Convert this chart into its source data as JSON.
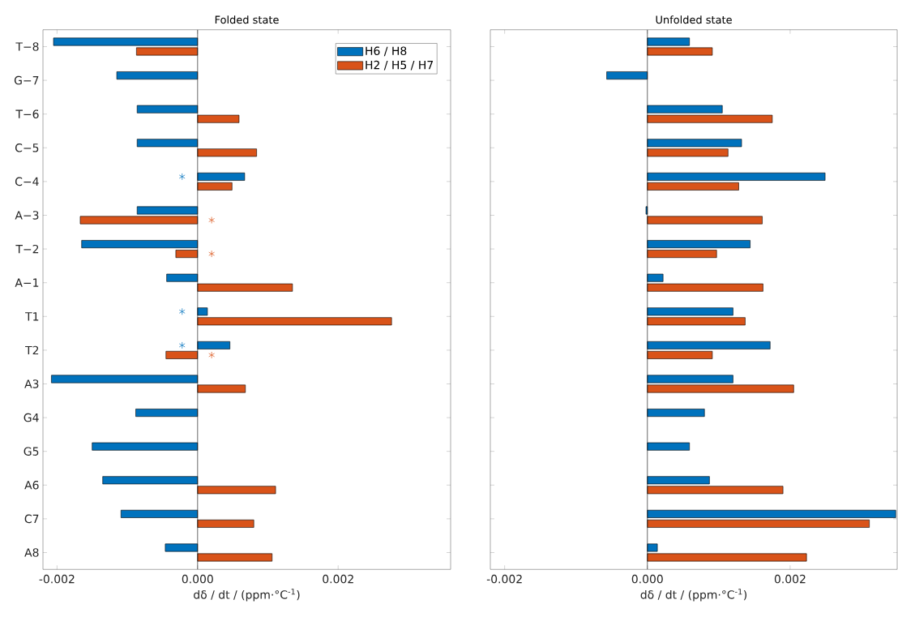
{
  "chart_data": [
    {
      "type": "bar",
      "orientation": "horizontal",
      "title": "Folded state",
      "xlabel": "dδ / dt / (ppm·°C$^{-1}$)",
      "categories": [
        "T−8",
        "G−7",
        "T−6",
        "C−5",
        "C−4",
        "A−3",
        "T−2",
        "A−1",
        "T1",
        "T2",
        "A3",
        "G4",
        "G5",
        "A6",
        "C7",
        "A8"
      ],
      "series": [
        {
          "name": "H6 / H8",
          "color": "#0072bd",
          "values": [
            -0.00205,
            -0.00115,
            -0.00086,
            -0.00086,
            0.00067,
            -0.00086,
            -0.00165,
            -0.00044,
            0.00014,
            0.00046,
            -0.00208,
            -0.00088,
            -0.0015,
            -0.00135,
            -0.00109,
            -0.00046
          ]
        },
        {
          "name": "H2 / H5 / H7",
          "color": "#d95319",
          "values": [
            -0.00087,
            null,
            0.00059,
            0.00084,
            0.00049,
            -0.00167,
            -0.00031,
            0.00135,
            0.00276,
            -0.00045,
            0.00068,
            null,
            null,
            0.00111,
            0.0008,
            0.00106
          ]
        },
        {
          "type": "scatter",
          "marker": "cross",
          "color": "#0072bd",
          "values": [
            null,
            null,
            null,
            null,
            -0.00022,
            null,
            null,
            null,
            -0.00022,
            -0.00022,
            null,
            null,
            null,
            null,
            null,
            null
          ]
        },
        {
          "type": "scatter",
          "marker": "cross",
          "color": "#d95319",
          "values": [
            null,
            null,
            null,
            null,
            null,
            0.0002,
            0.0002,
            null,
            null,
            0.0002,
            null,
            null,
            null,
            null,
            null,
            null
          ]
        }
      ],
      "xlim": [
        -0.0022,
        0.0036
      ],
      "xticks": [
        {
          "value": -0.002,
          "label": "-0.002"
        },
        {
          "value": 0,
          "label": "0.000"
        },
        {
          "value": 0.002,
          "label": "0.002"
        }
      ],
      "legend": "top right"
    },
    {
      "type": "bar",
      "orientation": "horizontal",
      "title": "Unfolded state",
      "xlabel": "dδ / dt / (ppm·°C$^{-1}$)",
      "categories": [
        null,
        null,
        null,
        null,
        null,
        null,
        null,
        null,
        null,
        null,
        null,
        null,
        null,
        null,
        null,
        null
      ],
      "series": [
        {
          "color": "#0072bd",
          "values": [
            0.00059,
            -0.00057,
            0.00105,
            0.00132,
            0.00249,
            -2e-05,
            0.00144,
            0.00022,
            0.0012,
            0.00172,
            0.0012,
            0.0008,
            0.00059,
            0.00087,
            0.00348,
            0.00014
          ]
        },
        {
          "color": "#d95319",
          "values": [
            0.00091,
            null,
            0.00175,
            0.00113,
            0.00128,
            0.00161,
            0.00097,
            0.00162,
            0.00137,
            0.00091,
            0.00205,
            null,
            null,
            0.0019,
            0.00311,
            0.00223
          ]
        }
      ],
      "xlim": [
        -0.0022,
        0.0035
      ],
      "xticks": [
        {
          "value": -0.002,
          "label": "-0.002"
        },
        {
          "value": 0,
          "label": "0.000"
        },
        {
          "value": 0.002,
          "label": "0.002"
        }
      ],
      "tick_labels": "x"
    }
  ]
}
